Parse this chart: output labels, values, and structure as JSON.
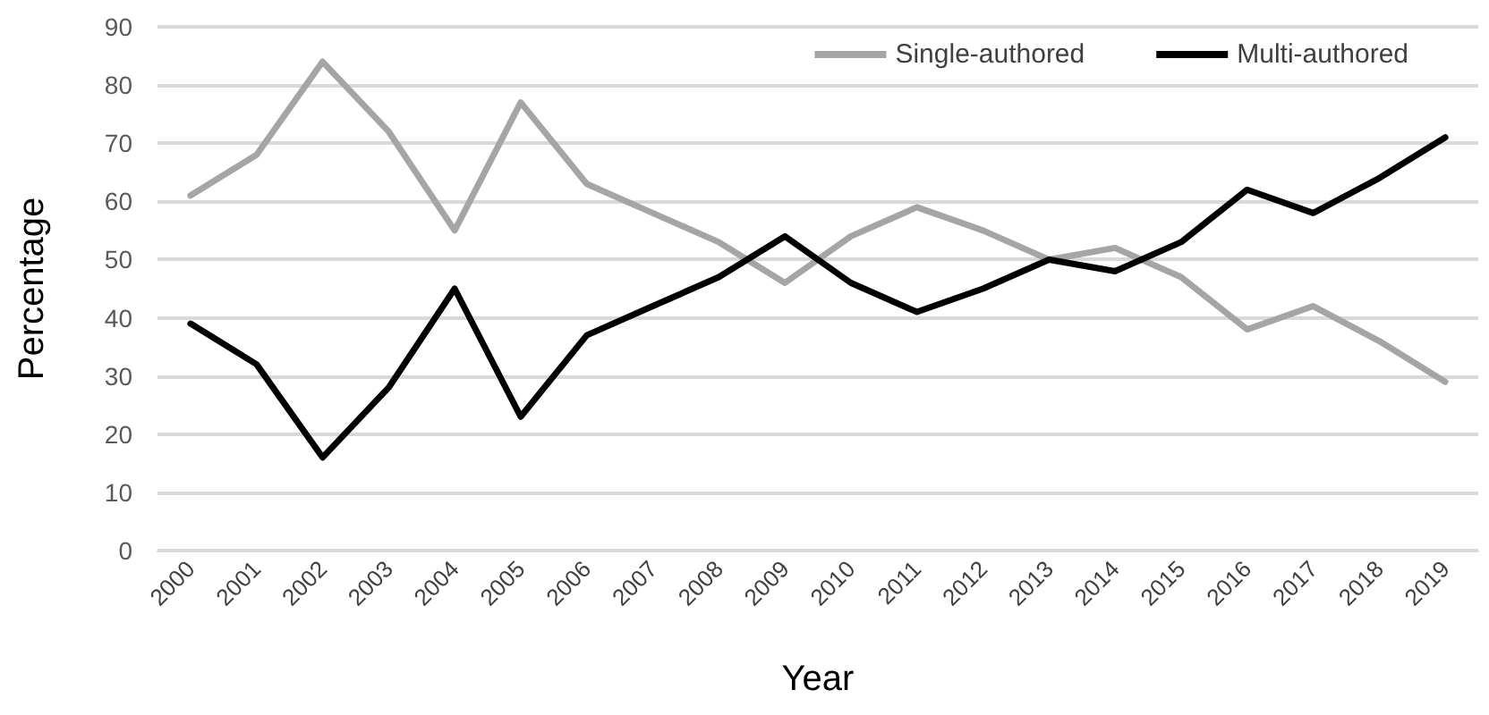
{
  "chart_data": {
    "type": "line",
    "xlabel": "Year",
    "ylabel": "Percentage",
    "categories": [
      "2000",
      "2001",
      "2002",
      "2003",
      "2004",
      "2005",
      "2006",
      "2007",
      "2008",
      "2009",
      "2010",
      "2011",
      "2012",
      "2013",
      "2014",
      "2015",
      "2016",
      "2017",
      "2018",
      "2019"
    ],
    "series": [
      {
        "name": "Single-authored",
        "color": "#a5a5a5",
        "values": [
          61,
          68,
          84,
          72,
          55,
          77,
          63,
          58,
          53,
          46,
          54,
          59,
          55,
          50,
          52,
          47,
          38,
          42,
          36,
          29
        ]
      },
      {
        "name": "Multi-authored",
        "color": "#000000",
        "values": [
          39,
          32,
          16,
          28,
          45,
          23,
          37,
          42,
          47,
          54,
          46,
          41,
          45,
          50,
          48,
          53,
          62,
          58,
          64,
          71
        ]
      }
    ],
    "ylim": [
      0,
      90
    ],
    "yticks": [
      0,
      10,
      20,
      30,
      40,
      50,
      60,
      70,
      80,
      90
    ],
    "grid": "y",
    "legend": "top right",
    "marker": "none",
    "line_style": "solid"
  }
}
